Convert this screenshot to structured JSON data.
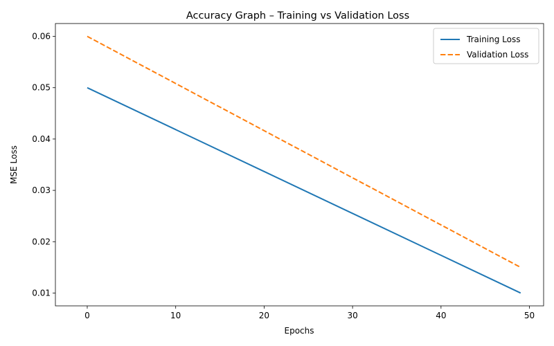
{
  "chart_data": {
    "type": "line",
    "title": "Accuracy Graph – Training vs Validation Loss",
    "xlabel": "Epochs",
    "ylabel": "MSE Loss",
    "xlim": [
      -3.6,
      51.6
    ],
    "ylim": [
      0.0075,
      0.0625
    ],
    "xticks": [
      0,
      10,
      20,
      30,
      40,
      50
    ],
    "xtick_labels": [
      "0",
      "10",
      "20",
      "30",
      "40",
      "50"
    ],
    "yticks": [
      0.01,
      0.02,
      0.03,
      0.04,
      0.05,
      0.06
    ],
    "ytick_labels": [
      "0.01",
      "0.02",
      "0.03",
      "0.04",
      "0.05",
      "0.06"
    ],
    "grid": false,
    "legend_position": "top-right",
    "series": [
      {
        "name": "Training Loss",
        "color": "#1f77b4",
        "style": "solid",
        "x": [
          0,
          49
        ],
        "values": [
          0.05,
          0.01
        ]
      },
      {
        "name": "Validation Loss",
        "color": "#ff7f0e",
        "style": "dashed",
        "x": [
          0,
          49
        ],
        "values": [
          0.06,
          0.015
        ]
      }
    ]
  }
}
